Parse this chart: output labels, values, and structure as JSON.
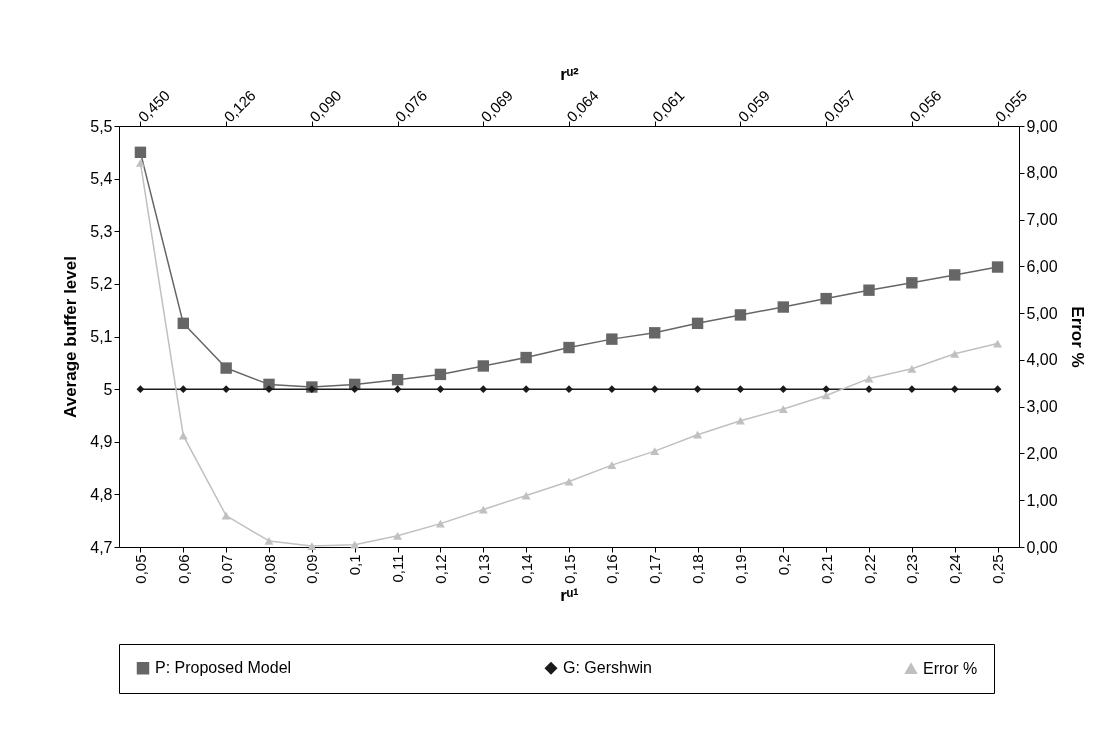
{
  "chart_data": {
    "type": "line",
    "xlabel": "rᵘ¹",
    "x2label": "rᵘ²",
    "ylabel": "Average buffer level",
    "y2label": "Error %",
    "x": [
      0.05,
      0.06,
      0.07,
      0.08,
      0.09,
      0.1,
      0.11,
      0.12,
      0.13,
      0.14,
      0.15,
      0.16,
      0.17,
      0.18,
      0.19,
      0.2,
      0.21,
      0.22,
      0.23,
      0.24,
      0.25
    ],
    "xlim": [
      0.045,
      0.255
    ],
    "xticks": [
      {
        "value": 0.05,
        "label": "0,05"
      },
      {
        "value": 0.06,
        "label": "0,06"
      },
      {
        "value": 0.07,
        "label": "0,07"
      },
      {
        "value": 0.08,
        "label": "0,08"
      },
      {
        "value": 0.09,
        "label": "0,09"
      },
      {
        "value": 0.1,
        "label": "0,1"
      },
      {
        "value": 0.11,
        "label": "0,11"
      },
      {
        "value": 0.12,
        "label": "0,12"
      },
      {
        "value": 0.13,
        "label": "0,13"
      },
      {
        "value": 0.14,
        "label": "0,14"
      },
      {
        "value": 0.15,
        "label": "0,15"
      },
      {
        "value": 0.16,
        "label": "0,16"
      },
      {
        "value": 0.17,
        "label": "0,17"
      },
      {
        "value": 0.18,
        "label": "0,18"
      },
      {
        "value": 0.19,
        "label": "0,19"
      },
      {
        "value": 0.2,
        "label": "0,2"
      },
      {
        "value": 0.21,
        "label": "0,21"
      },
      {
        "value": 0.22,
        "label": "0,22"
      },
      {
        "value": 0.23,
        "label": "0,23"
      },
      {
        "value": 0.24,
        "label": "0,24"
      },
      {
        "value": 0.25,
        "label": "0,25"
      }
    ],
    "annotations": [
      "0,450",
      "0,126",
      "0,090",
      "0,076",
      "0,069",
      "0,064",
      "0,061",
      "0,059",
      "0,057",
      "0,056",
      "0,055"
    ],
    "ylim": [
      4.7,
      5.5
    ],
    "yticks": [
      {
        "value": 4.7,
        "label": "4,7"
      },
      {
        "value": 4.8,
        "label": "4,8"
      },
      {
        "value": 4.9,
        "label": "4,9"
      },
      5,
      {
        "value": 5.1,
        "label": "5,1"
      },
      {
        "value": 5.2,
        "label": "5,2"
      },
      {
        "value": 5.3,
        "label": "5,3"
      },
      {
        "value": 5.4,
        "label": "5,4"
      },
      {
        "value": 5.5,
        "label": "5,5"
      }
    ],
    "y2lim": [
      0,
      9
    ],
    "y2ticks": [
      {
        "value": 0,
        "label": "0,00"
      },
      {
        "value": 1,
        "label": "1,00"
      },
      {
        "value": 2,
        "label": "2,00"
      },
      {
        "value": 3,
        "label": "3,00"
      },
      {
        "value": 4,
        "label": "4,00"
      },
      {
        "value": 5,
        "label": "5,00"
      },
      {
        "value": 6,
        "label": "6,00"
      },
      {
        "value": 7,
        "label": "7,00"
      },
      {
        "value": 8,
        "label": "8,00"
      },
      {
        "value": 9,
        "label": "9,00"
      }
    ],
    "series": [
      {
        "name": "P: Proposed Model",
        "color": "#666666",
        "marker": "square",
        "values": [
          5.45,
          5.125,
          5.04,
          5.009,
          5.004,
          5.009,
          5.018,
          5.028,
          5.044,
          5.06,
          5.079,
          5.095,
          5.107,
          5.125,
          5.141,
          5.156,
          5.172,
          5.188,
          5.202,
          5.217,
          5.232
        ]
      },
      {
        "name": "G: Gershwin",
        "color": "#1a1a1a",
        "marker": "diamond",
        "values": [
          5,
          5,
          5,
          5,
          5,
          5,
          5,
          5,
          5,
          5,
          5,
          5,
          5,
          5,
          5,
          5,
          5,
          5,
          5,
          5,
          5
        ]
      },
      {
        "name": "Error %",
        "color": "#c0c0c0",
        "marker": "triangle",
        "axis": "y2",
        "values": [
          8.21,
          2.38,
          0.67,
          0.13,
          0.02,
          0.05,
          0.24,
          0.5,
          0.8,
          1.1,
          1.4,
          1.75,
          2.05,
          2.4,
          2.7,
          2.95,
          3.24,
          3.6,
          3.81,
          4.13,
          4.35
        ]
      }
    ],
    "grid": false,
    "legend": "bottom"
  }
}
